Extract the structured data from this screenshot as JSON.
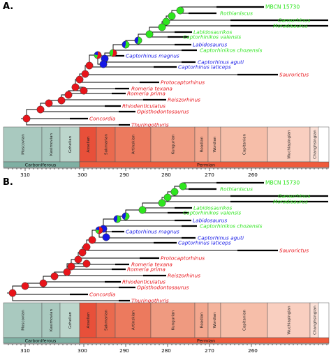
{
  "colors": {
    "red": "#e8141a",
    "green": "#2ee51e",
    "blue": "#1518e6",
    "carboniferous": "#7fb0a3",
    "carboniferous_stage": "#a9c9bf",
    "gzhelian": "#bcd6cc",
    "permian": "#ef5b3c",
    "asselian": "#e8503a",
    "sakmarian": "#ea6a4e",
    "artinskian": "#ec7a5e",
    "kungurian": "#ef9a80",
    "roadian": "#f3a78e",
    "wordian": "#f4b39c",
    "capitanian": "#f6bea9",
    "wuchiapingian": "#f9cfc0",
    "changhsingian": "#fbe0d6"
  },
  "panels": [
    {
      "label": "A.",
      "taxa": [
        {
          "name": "MBCN 15730",
          "color": "green",
          "italic": false
        },
        {
          "name": "Rothianiscus",
          "color": "green",
          "italic": true
        },
        {
          "name": "Gansurhinus",
          "color": "green",
          "italic": true
        },
        {
          "name": "Moradisaurus",
          "color": "green",
          "italic": true
        },
        {
          "name": "Labidosaurikos",
          "color": "green",
          "italic": true
        },
        {
          "name": "Captorhinikos valensis",
          "color": "green",
          "italic": true
        },
        {
          "name": "Labidosaurus",
          "color": "blue",
          "italic": true
        },
        {
          "name": "Captorhinikos chozensis",
          "color": "green",
          "italic": true
        },
        {
          "name": "Captorhinus magnus",
          "color": "blue",
          "italic": true
        },
        {
          "name": "Captorhinus aguti",
          "color": "blue",
          "italic": true
        },
        {
          "name": "Captorhinus laticeps",
          "color": "blue",
          "italic": true
        },
        {
          "name": "Saurorictus",
          "color": "red",
          "italic": true
        },
        {
          "name": "Protocaptorhinus",
          "color": "red",
          "italic": true
        },
        {
          "name": "Romeria texana",
          "color": "red",
          "italic": true
        },
        {
          "name": "Romeria prima",
          "color": "red",
          "italic": true
        },
        {
          "name": "Reiszorhinus",
          "color": "red",
          "italic": true
        },
        {
          "name": "Rhiodenticulatus",
          "color": "red",
          "italic": true
        },
        {
          "name": "Opisthodontosaurus",
          "color": "red",
          "italic": true
        },
        {
          "name": "Concordia",
          "color": "red",
          "italic": true
        },
        {
          "name": "Thuringothyris",
          "color": "red",
          "italic": true
        }
      ]
    },
    {
      "label": "B.",
      "taxa": [
        {
          "name": "MBCN 15730",
          "color": "green",
          "italic": false
        },
        {
          "name": "Rothianiscus",
          "color": "green",
          "italic": true
        },
        {
          "name": "Gansurhinus",
          "color": "green",
          "italic": true
        },
        {
          "name": "Moradisaurus",
          "color": "green",
          "italic": true
        },
        {
          "name": "Labidosaurikos",
          "color": "green",
          "italic": true
        },
        {
          "name": "Captorhinikos valensis",
          "color": "green",
          "italic": true
        },
        {
          "name": "Labidosaurus",
          "color": "blue",
          "italic": true
        },
        {
          "name": "Captorhinikos chozensis",
          "color": "green",
          "italic": true
        },
        {
          "name": "Captorhinus magnus",
          "color": "blue",
          "italic": true
        },
        {
          "name": "Captorhinus aguti",
          "color": "blue",
          "italic": true
        },
        {
          "name": "Captorhinus laticeps",
          "color": "blue",
          "italic": true
        },
        {
          "name": "Saurorictus",
          "color": "red",
          "italic": true
        },
        {
          "name": "Protocaptorhinus",
          "color": "red",
          "italic": true
        },
        {
          "name": "Romeria texana",
          "color": "red",
          "italic": true
        },
        {
          "name": "Romeria prima",
          "color": "red",
          "italic": true
        },
        {
          "name": "Reiszorhinus",
          "color": "red",
          "italic": true
        },
        {
          "name": "Rhiodenticulatus",
          "color": "red",
          "italic": true
        },
        {
          "name": "Opisthodontosaurus",
          "color": "red",
          "italic": true
        },
        {
          "name": "Concordia",
          "color": "red",
          "italic": true
        },
        {
          "name": "Thuringothyris",
          "color": "red",
          "italic": true
        }
      ]
    }
  ],
  "timescale": {
    "periods": [
      {
        "name": "Carboniferous",
        "color": "carboniferous"
      },
      {
        "name": "Permian",
        "color": "permian"
      }
    ],
    "stages": [
      {
        "name": "Moscovian",
        "color": "carboniferous_stage"
      },
      {
        "name": "Kasimovian",
        "color": "carboniferous_stage"
      },
      {
        "name": "Gzhelian",
        "color": "gzhelian"
      },
      {
        "name": "Asselian",
        "color": "asselian"
      },
      {
        "name": "Sakmarian",
        "color": "sakmarian"
      },
      {
        "name": "Artinskian",
        "color": "artinskian"
      },
      {
        "name": "Kungurian",
        "color": "kungurian"
      },
      {
        "name": "Roadian",
        "color": "roadian"
      },
      {
        "name": "Wordian",
        "color": "wordian"
      },
      {
        "name": "Capitanian",
        "color": "capitanian"
      },
      {
        "name": "Wuchiapingian",
        "color": "wuchiapingian"
      },
      {
        "name": "Changhsingian",
        "color": "changhsingian"
      }
    ],
    "tick_labels": [
      "310",
      "300",
      "290",
      "280",
      "270",
      "260"
    ]
  }
}
